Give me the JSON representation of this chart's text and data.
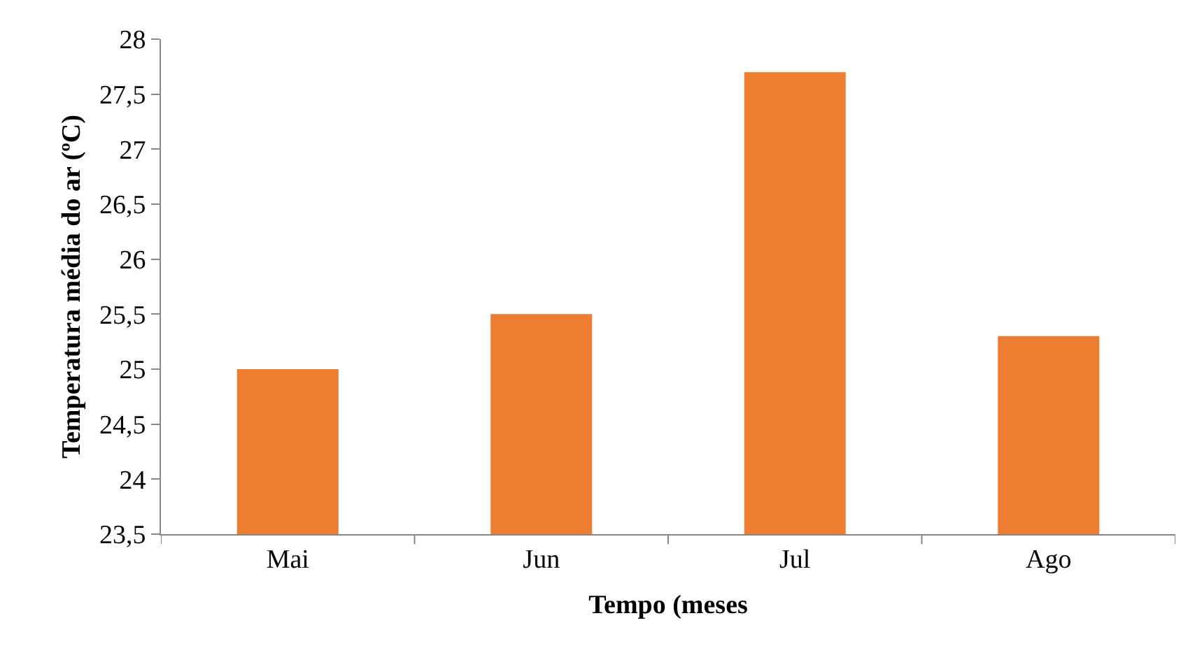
{
  "chart_data": {
    "type": "bar",
    "xlabel": "Tempo (meses",
    "ylabel": "Temperatura média do ar (ºC)",
    "categories": [
      "Mai",
      "Jun",
      "Jul",
      "Ago"
    ],
    "values": [
      25,
      25.5,
      27.7,
      25.3
    ],
    "color": "#ed7d31",
    "ylim": [
      23.5,
      28
    ],
    "yticks": [
      {
        "value": 23.5,
        "label": "23,5"
      },
      {
        "value": 24,
        "label": "24"
      },
      {
        "value": 24.5,
        "label": "24,5"
      },
      {
        "value": 25,
        "label": "25"
      },
      {
        "value": 25.5,
        "label": "25,5"
      },
      {
        "value": 26,
        "label": "26"
      },
      {
        "value": 26.5,
        "label": "26,5"
      },
      {
        "value": 27,
        "label": "27"
      },
      {
        "value": 27.5,
        "label": "27,5"
      },
      {
        "value": 28,
        "label": "28"
      }
    ],
    "grid": false
  }
}
